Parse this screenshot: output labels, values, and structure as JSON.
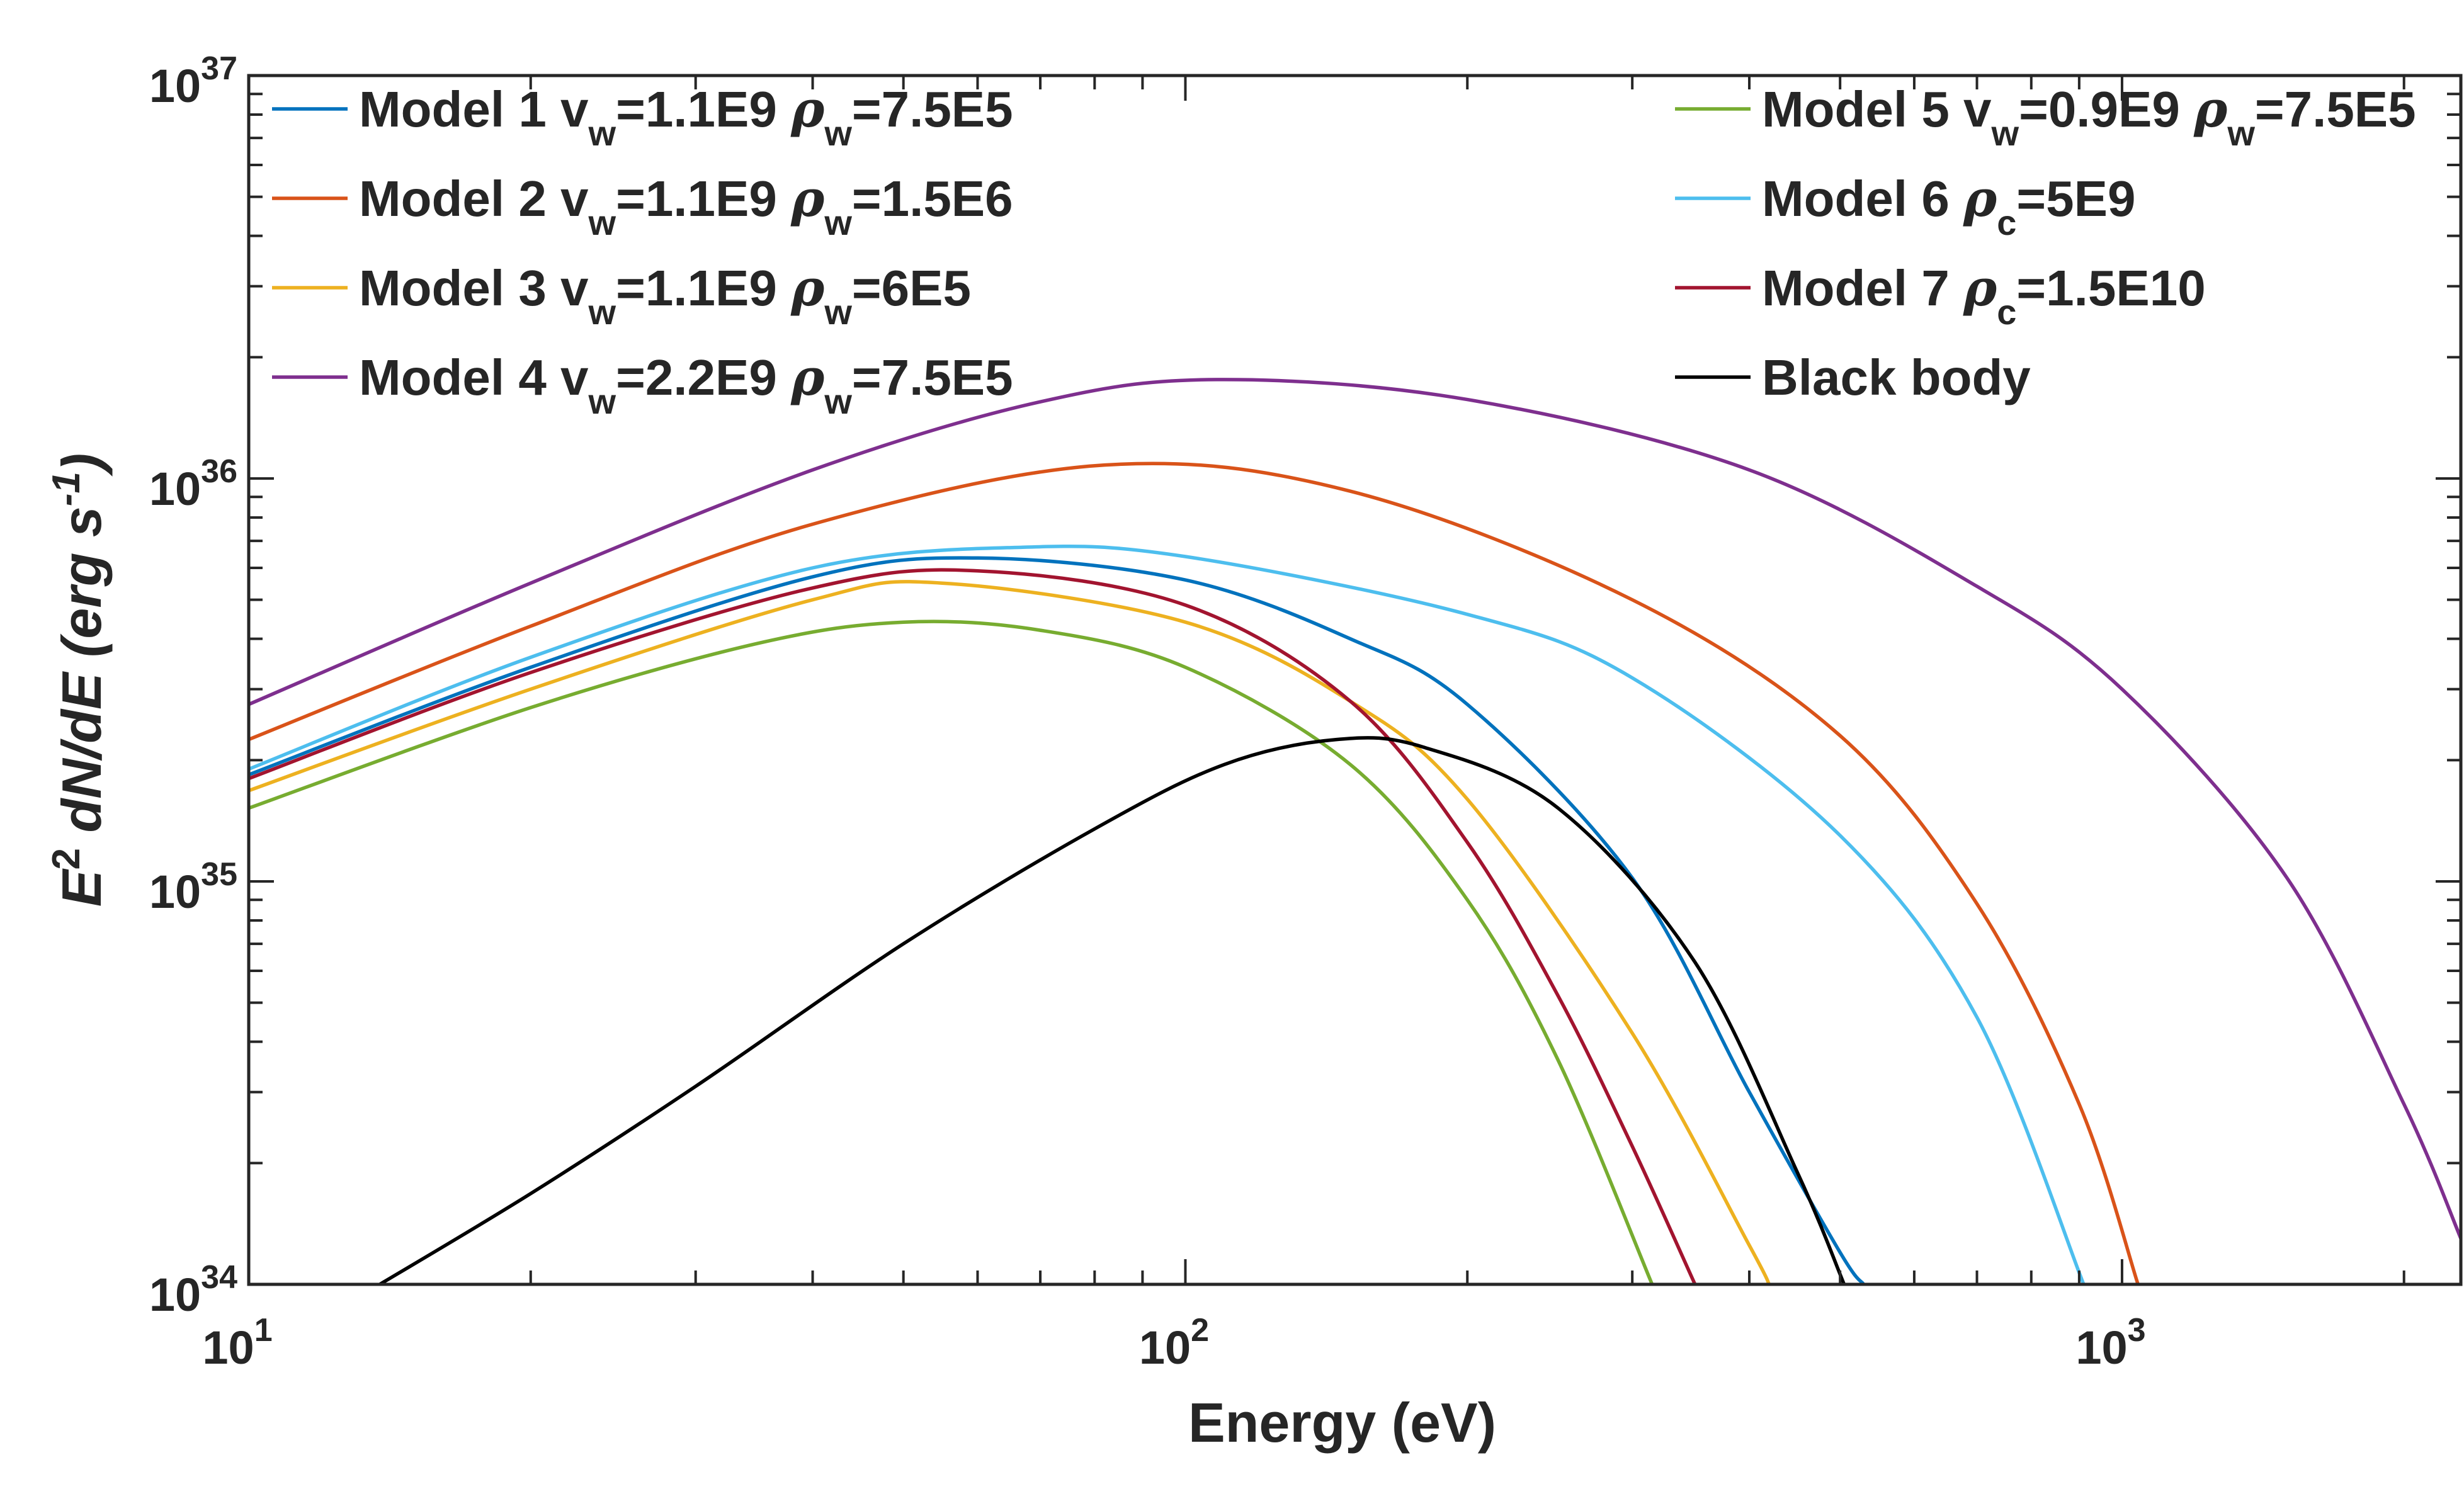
{
  "chart_data": {
    "type": "line",
    "xlabel": "Energy (eV)",
    "ylabel_parts": {
      "base": "E",
      "base_exp": "2",
      "middle": " dN/dE (erg s",
      "unit_exp": "-1",
      "close": ")"
    },
    "xscale": "log",
    "yscale": "log",
    "xlim": [
      10,
      2300
    ],
    "ylim": [
      1e+34,
      1e+37
    ],
    "grid": false,
    "legend_placement": "top, two columns",
    "x_ticks": [
      {
        "value": 10,
        "base": "10",
        "exp": "1"
      },
      {
        "value": 100,
        "base": "10",
        "exp": "2"
      },
      {
        "value": 1000,
        "base": "10",
        "exp": "3"
      }
    ],
    "y_ticks": [
      {
        "value": 1e+34,
        "base": "10",
        "exp": "34"
      },
      {
        "value": 1e+35,
        "base": "10",
        "exp": "35"
      },
      {
        "value": 1e+36,
        "base": "10",
        "exp": "36"
      },
      {
        "value": 1e+37,
        "base": "10",
        "exp": "37"
      }
    ],
    "series": [
      {
        "name": "Model 1",
        "legend_parts": [
          [
            "t",
            "Model 1 v"
          ],
          [
            "s",
            "w"
          ],
          [
            "t",
            "=1.1E9 "
          ],
          [
            "g",
            "ρ"
          ],
          [
            "s",
            "w"
          ],
          [
            "t",
            "=7.5E5"
          ]
        ],
        "color": "#0072BD",
        "x": [
          10,
          20,
          40,
          60,
          100,
          150,
          200,
          300,
          400,
          500,
          530
        ],
        "y": [
          1.84e+35,
          3.4e+35,
          5.7e+35,
          6.35e+35,
          5.6e+35,
          4e+35,
          2.75e+35,
          1.02e+35,
          3e+34,
          1.2e+34,
          1e+34
        ]
      },
      {
        "name": "Model 2",
        "legend_parts": [
          [
            "t",
            "Model 2 v"
          ],
          [
            "s",
            "w"
          ],
          [
            "t",
            "=1.1E9 "
          ],
          [
            "g",
            "ρ"
          ],
          [
            "s",
            "w"
          ],
          [
            "t",
            "=1.5E6"
          ]
        ],
        "color": "#D95319",
        "x": [
          10,
          20,
          40,
          82,
          150,
          300,
          500,
          700,
          900,
          1040
        ],
        "y": [
          2.25e+35,
          4.3e+35,
          7.7e+35,
          1.08e+36,
          9.3e+35,
          5e+35,
          2.3e+35,
          8.8e+34,
          2.8e+34,
          1e+34
        ]
      },
      {
        "name": "Model 3",
        "legend_parts": [
          [
            "t",
            "Model 3 v"
          ],
          [
            "s",
            "w"
          ],
          [
            "t",
            "=1.1E9 "
          ],
          [
            "g",
            "ρ"
          ],
          [
            "s",
            "w"
          ],
          [
            "t",
            "=6E5"
          ]
        ],
        "color": "#EDB120",
        "x": [
          10,
          20,
          40,
          55,
          100,
          150,
          200,
          300,
          400,
          420
        ],
        "y": [
          1.68e+35,
          3e+35,
          5e+35,
          5.5e+35,
          4.4e+35,
          2.8e+35,
          1.6e+35,
          4.2e+34,
          1.25e+34,
          1e+34
        ]
      },
      {
        "name": "Model 4",
        "legend_parts": [
          [
            "t",
            "Model 4 v"
          ],
          [
            "s",
            "w"
          ],
          [
            "t",
            "=2.2E9 "
          ],
          [
            "g",
            "ρ"
          ],
          [
            "s",
            "w"
          ],
          [
            "t",
            "=7.5E5"
          ]
        ],
        "color": "#7E2F8E",
        "x": [
          10,
          20,
          40,
          70,
          108,
          200,
          400,
          700,
          1000,
          1500,
          2000,
          2300
        ],
        "y": [
          2.75e+35,
          5.5e+35,
          1.05e+36,
          1.55e+36,
          1.76e+36,
          1.57e+36,
          1.05e+36,
          5.4e+35,
          3e+35,
          1.02e+35,
          2.8e+34,
          1.3e+34
        ]
      },
      {
        "name": "Model 5",
        "legend_parts": [
          [
            "t",
            "Model 5 v"
          ],
          [
            "s",
            "w"
          ],
          [
            "t",
            "=0.9E9 "
          ],
          [
            "g",
            "ρ"
          ],
          [
            "s",
            "w"
          ],
          [
            "t",
            "=7.5E5"
          ]
        ],
        "color": "#77AC30",
        "x": [
          10,
          20,
          35,
          50,
          70,
          100,
          150,
          200,
          250,
          315
        ],
        "y": [
          1.52e+35,
          2.7e+35,
          3.9e+35,
          4.4e+35,
          4.2e+35,
          3.4e+35,
          1.95e+35,
          9e+34,
          3.6e+34,
          1e+34
        ]
      },
      {
        "name": "Model 6",
        "legend_parts": [
          [
            "t",
            "Model 6 "
          ],
          [
            "g",
            "ρ"
          ],
          [
            "s",
            "c"
          ],
          [
            "t",
            "=5E9"
          ]
        ],
        "color": "#4DBEEE",
        "x": [
          10,
          20,
          40,
          67,
          100,
          200,
          300,
          500,
          700,
          910
        ],
        "y": [
          1.9e+35,
          3.6e+35,
          6e+35,
          6.75e+35,
          6.4e+35,
          4.6e+35,
          3.2e+35,
          1.3e+35,
          4.6e+34,
          1e+34
        ]
      },
      {
        "name": "Model 7",
        "legend_parts": [
          [
            "t",
            "Model 7 "
          ],
          [
            "g",
            "ρ"
          ],
          [
            "s",
            "c"
          ],
          [
            "t",
            "=1.5E10"
          ]
        ],
        "color": "#A2142F",
        "x": [
          10,
          20,
          40,
          60,
          100,
          150,
          200,
          250,
          300,
          350
        ],
        "y": [
          1.8e+35,
          3.3e+35,
          5.35e+35,
          5.9e+35,
          4.85e+35,
          2.8e+35,
          1.25e+35,
          5.2e+34,
          2.2e+34,
          1e+34
        ]
      },
      {
        "name": "Black body",
        "legend_parts": [
          [
            "t",
            "Black body"
          ]
        ],
        "color": "#000000",
        "x": [
          13.8,
          20,
          30,
          50,
          80,
          110,
          145,
          180,
          250,
          350,
          450,
          505
        ],
        "y": [
          1e+34,
          1.68e+34,
          3.1e+34,
          7e+34,
          1.35e+35,
          1.95e+35,
          2.25e+35,
          2.15e+35,
          1.52e+35,
          6.3e+34,
          1.9e+34,
          1e+34
        ]
      }
    ]
  }
}
